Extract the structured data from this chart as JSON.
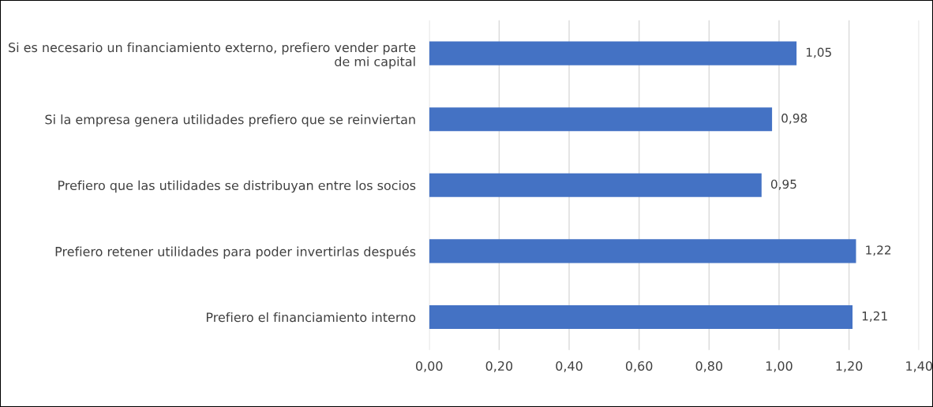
{
  "chart_data": {
    "type": "bar",
    "orientation": "horizontal",
    "categories": [
      "Si es necesario un financiamiento externo, prefiero vender parte de mi capital",
      "Si la empresa genera utilidades prefiero que se reinviertan",
      "Prefiero que las utilidades se distribuyan entre los socios",
      "Prefiero retener utilidades para poder invertirlas después",
      "Prefiero el financiamiento interno"
    ],
    "values": [
      1.05,
      0.98,
      0.95,
      1.22,
      1.21
    ],
    "value_labels": [
      "1,05",
      "0,98",
      "0,95",
      "1,22",
      "1,21"
    ],
    "color": "#4472c4",
    "xlim": [
      0,
      1.4
    ],
    "xticks": [
      {
        "value": 0,
        "label": "0,00"
      },
      {
        "value": 0.2,
        "label": "0,20"
      },
      {
        "value": 0.4,
        "label": "0,40"
      },
      {
        "value": 0.6,
        "label": "0,60"
      },
      {
        "value": 0.8,
        "label": "0,80"
      },
      {
        "value": 1.0,
        "label": "1,00"
      },
      {
        "value": 1.2,
        "label": "1,20"
      },
      {
        "value": 1.4,
        "label": "1,40"
      }
    ],
    "grid": "x",
    "legend": false
  }
}
